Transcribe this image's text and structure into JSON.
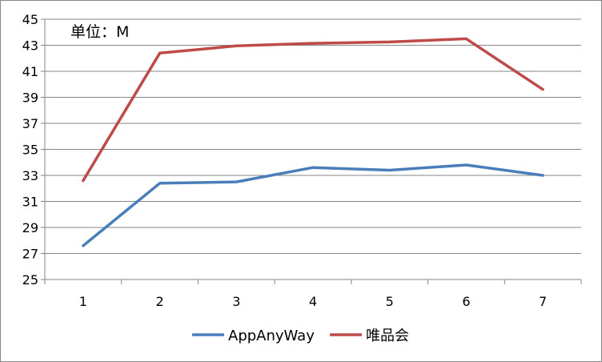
{
  "chart_data": {
    "type": "line",
    "title": "",
    "unit_note": "单位：M",
    "xlabel": "",
    "ylabel": "",
    "x": [
      1,
      2,
      3,
      4,
      5,
      6,
      7
    ],
    "x_tick_labels": [
      "1",
      "2",
      "3",
      "4",
      "5",
      "6",
      "7"
    ],
    "ylim": [
      25,
      45
    ],
    "y_ticks": [
      25,
      27,
      29,
      31,
      33,
      35,
      37,
      39,
      41,
      43,
      45
    ],
    "y_tick_labels": [
      "25",
      "27",
      "29",
      "31",
      "33",
      "35",
      "37",
      "39",
      "41",
      "43",
      "45"
    ],
    "grid": true,
    "legend_position": "bottom",
    "series": [
      {
        "name": "AppAnyWay",
        "color": "#4A7EBB",
        "values": [
          27.6,
          32.4,
          32.5,
          33.6,
          33.4,
          33.8,
          33.0
        ]
      },
      {
        "name": "唯品会",
        "color": "#BE4B48",
        "values": [
          32.6,
          42.4,
          42.95,
          43.15,
          43.25,
          43.5,
          39.6
        ]
      }
    ]
  }
}
